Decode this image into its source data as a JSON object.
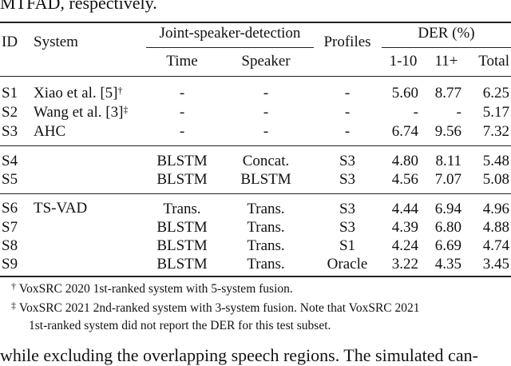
{
  "caption_tail": "MTFAD, respectively.",
  "headers": {
    "id": "ID",
    "system": "System",
    "joint": "Joint-speaker-detection",
    "time": "Time",
    "speaker": "Speaker",
    "profiles": "Profiles",
    "der": "DER (%)",
    "c1": "1-10",
    "c2": "11+",
    "total": "Total"
  },
  "rows": [
    {
      "id": "S1",
      "system": "Xiao et al. [5]",
      "mark": "†",
      "time": "-",
      "speaker": "-",
      "profiles": "-",
      "d1": "5.60",
      "d2": "8.77",
      "total": "6.25"
    },
    {
      "id": "S2",
      "system": "Wang et al. [3]",
      "mark": "‡",
      "time": "-",
      "speaker": "-",
      "profiles": "-",
      "d1": "-",
      "d2": "-",
      "total": "5.17"
    },
    {
      "id": "S3",
      "system": "AHC",
      "mark": "",
      "time": "-",
      "speaker": "-",
      "profiles": "-",
      "d1": "6.74",
      "d2": "9.56",
      "total": "7.32"
    },
    {
      "id": "S4",
      "system": "",
      "mark": "",
      "time": "BLSTM",
      "speaker": "Concat.",
      "profiles": "S3",
      "d1": "4.80",
      "d2": "8.11",
      "total": "5.48"
    },
    {
      "id": "S5",
      "system": "",
      "mark": "",
      "time": "BLSTM",
      "speaker": "BLSTM",
      "profiles": "S3",
      "d1": "4.56",
      "d2": "7.07",
      "total": "5.08"
    },
    {
      "id": "S6",
      "system": "TS-VAD",
      "mark": "",
      "time": "Trans.",
      "speaker": "Trans.",
      "profiles": "S3",
      "d1": "4.44",
      "d2": "6.94",
      "total": "4.96"
    },
    {
      "id": "S7",
      "system": "",
      "mark": "",
      "time": "BLSTM",
      "speaker": "Trans.",
      "profiles": "S3",
      "d1": "4.39",
      "d2": "6.80",
      "total": "4.88"
    },
    {
      "id": "S8",
      "system": "",
      "mark": "",
      "time": "BLSTM",
      "speaker": "Trans.",
      "profiles": "S1",
      "d1": "4.24",
      "d2": "6.69",
      "total": "4.74"
    },
    {
      "id": "S9",
      "system": "",
      "mark": "",
      "time": "BLSTM",
      "speaker": "Trans.",
      "profiles": "Oracle",
      "d1": "3.22",
      "d2": "4.35",
      "total": "3.45"
    }
  ],
  "footnotes": [
    {
      "mark": "†",
      "text": "VoxSRC 2020 1st-ranked system with 5-system fusion."
    },
    {
      "mark": "‡",
      "text": "VoxSRC 2021 2nd-ranked system with 3-system fusion. Note that VoxSRC 2021"
    },
    {
      "mark": "",
      "text": "1st-ranked system did not report the DER for this test subset."
    }
  ],
  "body_tail": "while excluding the overlapping speech regions. The simulated can-"
}
